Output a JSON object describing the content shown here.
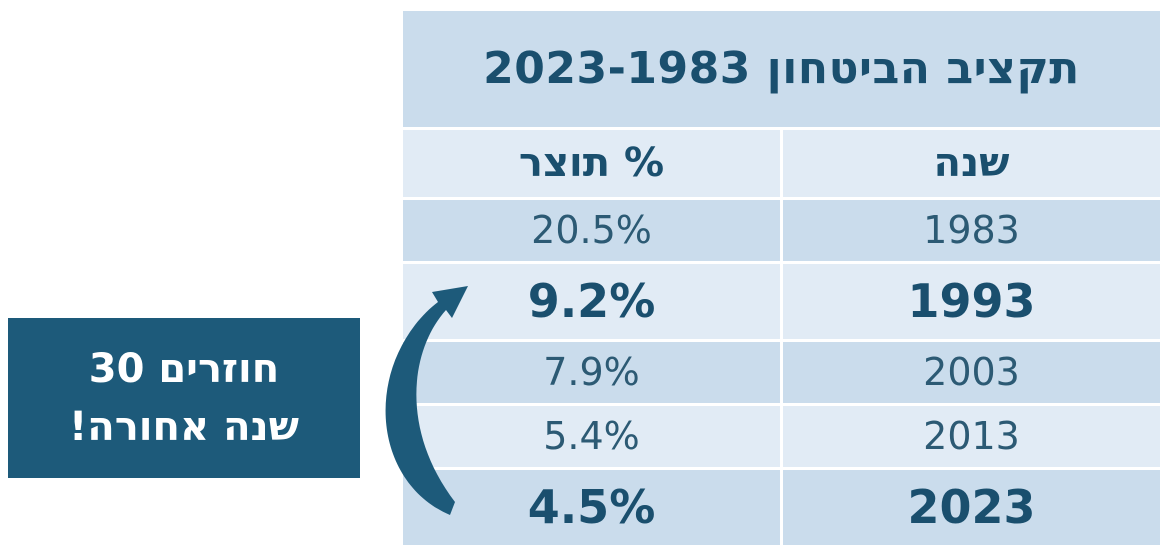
{
  "table": {
    "title": "תקציב הביטחון 2023-1983",
    "headers": {
      "year": "שנה",
      "percent": "% תוצר"
    },
    "rows": [
      {
        "year": "1983",
        "percent": "20.5%",
        "highlight": false
      },
      {
        "year": "1993",
        "percent": "9.2%",
        "highlight": true
      },
      {
        "year": "2003",
        "percent": "7.9%",
        "highlight": false
      },
      {
        "year": "2013",
        "percent": "5.4%",
        "highlight": false
      },
      {
        "year": "2023",
        "percent": "4.5%",
        "highlight": true
      }
    ]
  },
  "callout": {
    "line1": "חוזרים 30",
    "line2": "שנה אחורה!"
  },
  "colors": {
    "dark_blue": "#1d5a7a",
    "title_text": "#1a4f6e",
    "row_dark": "#cadcec",
    "row_light": "#e1ebf5"
  },
  "icons": {
    "arrow": "curved-arrow-icon"
  }
}
